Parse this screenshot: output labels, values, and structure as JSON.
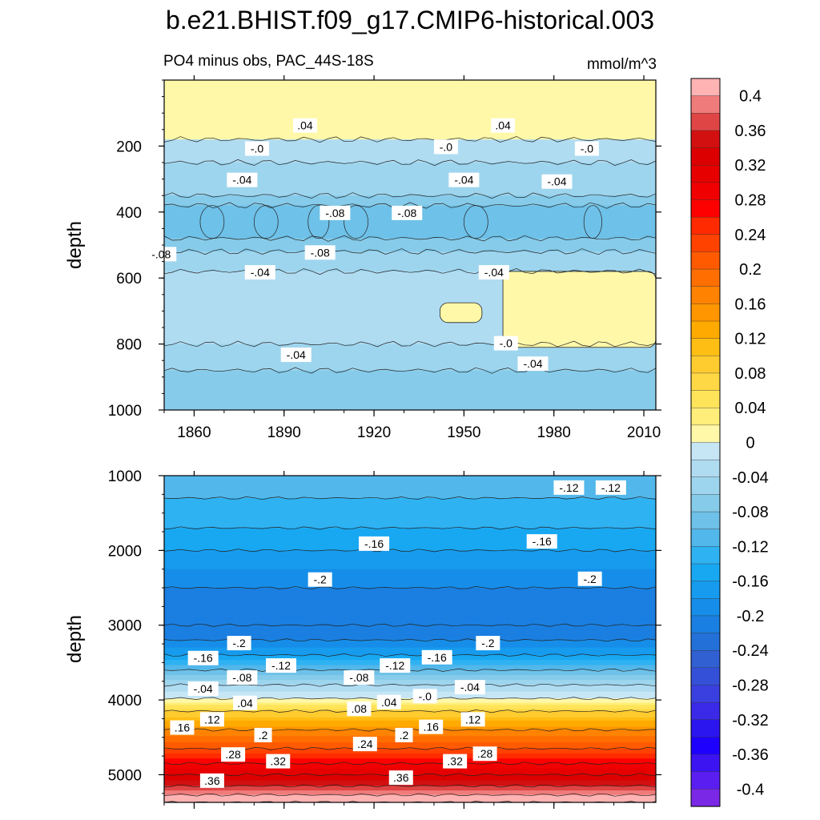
{
  "title": "b.e21.BHIST.f09_g17.CMIP6-historical.003",
  "subtitle_left": "PO4 minus obs, PAC_44S-18S",
  "subtitle_right": "mmol/m^3",
  "ylabel_top": "depth",
  "ylabel_bottom": "depth",
  "chart_data": [
    {
      "type": "heatmap",
      "panel": "upper",
      "x_range": [
        1850,
        2014
      ],
      "y_range": [
        0,
        1000
      ],
      "y_reversed": true,
      "x_ticks": [
        "1860",
        "1890",
        "1920",
        "1950",
        "1980",
        "2010"
      ],
      "y_ticks": [
        "200",
        "400",
        "600",
        "800",
        "1000"
      ],
      "ylabel": "depth",
      "bands": [
        {
          "depth_top": 0,
          "depth_bottom": 180,
          "value": 0.02
        },
        {
          "depth_top": 180,
          "depth_bottom": 250,
          "value": -0.02
        },
        {
          "depth_top": 250,
          "depth_bottom": 350,
          "value": -0.04
        },
        {
          "depth_top": 350,
          "depth_bottom": 380,
          "value": -0.06
        },
        {
          "depth_top": 380,
          "depth_bottom": 480,
          "value": -0.08
        },
        {
          "depth_top": 480,
          "depth_bottom": 520,
          "value": -0.06
        },
        {
          "depth_top": 520,
          "depth_bottom": 580,
          "value": -0.04
        },
        {
          "depth_top": 580,
          "depth_bottom": 800,
          "value": -0.02
        },
        {
          "depth_top": 800,
          "depth_bottom": 880,
          "value": -0.04
        },
        {
          "depth_top": 880,
          "depth_bottom": 1000,
          "value": -0.06
        }
      ],
      "patches": [
        {
          "x_start": 1963,
          "x_end": 2014,
          "depth_top": 580,
          "depth_bottom": 810,
          "value": 0.01
        },
        {
          "x_start": 1942,
          "x_end": 1956,
          "depth_top": 675,
          "depth_bottom": 735,
          "value": 0.01
        }
      ],
      "contour_labels": [
        {
          "text": ".04",
          "x": 1897,
          "depth": 140
        },
        {
          "text": ".04",
          "x": 1963,
          "depth": 140
        },
        {
          "text": "-.0",
          "x": 1881,
          "depth": 210
        },
        {
          "text": "-.0",
          "x": 1944,
          "depth": 205
        },
        {
          "text": "-.0",
          "x": 1991,
          "depth": 210
        },
        {
          "text": "-.04",
          "x": 1876,
          "depth": 305
        },
        {
          "text": "-.04",
          "x": 1950,
          "depth": 305
        },
        {
          "text": "-.04",
          "x": 1981,
          "depth": 310
        },
        {
          "text": "-.08",
          "x": 1907,
          "depth": 405
        },
        {
          "text": "-.08",
          "x": 1931,
          "depth": 405
        },
        {
          "text": "-.08",
          "x": 1902,
          "depth": 525
        },
        {
          "text": "-.08",
          "x": 1849,
          "depth": 530
        },
        {
          "text": "-.04",
          "x": 1882,
          "depth": 585
        },
        {
          "text": "-.04",
          "x": 1960,
          "depth": 585
        },
        {
          "text": "-.0",
          "x": 1964,
          "depth": 800
        },
        {
          "text": "-.04",
          "x": 1894,
          "depth": 835
        },
        {
          "text": "-.04",
          "x": 1973,
          "depth": 862
        }
      ]
    },
    {
      "type": "heatmap",
      "panel": "lower",
      "x_range": [
        1850,
        2014
      ],
      "y_range": [
        1000,
        5370
      ],
      "y_reversed": true,
      "x_ticks": [],
      "y_ticks": [
        "1000",
        "2000",
        "3000",
        "4000",
        "5000"
      ],
      "ylabel": "depth",
      "profile": [
        {
          "depth": 1000,
          "value": -0.1
        },
        {
          "depth": 1300,
          "value": -0.12
        },
        {
          "depth": 1700,
          "value": -0.14
        },
        {
          "depth": 2000,
          "value": -0.16
        },
        {
          "depth": 2500,
          "value": -0.2
        },
        {
          "depth": 3000,
          "value": -0.22
        },
        {
          "depth": 3200,
          "value": -0.2
        },
        {
          "depth": 3400,
          "value": -0.16
        },
        {
          "depth": 3600,
          "value": -0.1
        },
        {
          "depth": 3800,
          "value": -0.04
        },
        {
          "depth": 3980,
          "value": 0.0
        },
        {
          "depth": 4150,
          "value": 0.08
        },
        {
          "depth": 4400,
          "value": 0.16
        },
        {
          "depth": 4650,
          "value": 0.22
        },
        {
          "depth": 4850,
          "value": 0.28
        },
        {
          "depth": 5000,
          "value": 0.32
        },
        {
          "depth": 5150,
          "value": 0.36
        },
        {
          "depth": 5270,
          "value": 0.4
        },
        {
          "depth": 5370,
          "value": 0.44
        }
      ],
      "contour_labels": [
        {
          "text": "-.12",
          "x": 1985,
          "depth": 1170
        },
        {
          "text": "-.12",
          "x": 1999,
          "depth": 1170
        },
        {
          "text": "-.16",
          "x": 1920,
          "depth": 1920
        },
        {
          "text": "-.16",
          "x": 1976,
          "depth": 1890
        },
        {
          "text": "-.2",
          "x": 1902,
          "depth": 2400
        },
        {
          "text": "-.2",
          "x": 1992,
          "depth": 2390
        },
        {
          "text": "-.2",
          "x": 1875,
          "depth": 3250
        },
        {
          "text": "-.2",
          "x": 1958,
          "depth": 3250
        },
        {
          "text": "-.16",
          "x": 1863,
          "depth": 3450
        },
        {
          "text": "-.16",
          "x": 1941,
          "depth": 3440
        },
        {
          "text": "-.12",
          "x": 1889,
          "depth": 3550
        },
        {
          "text": "-.12",
          "x": 1927,
          "depth": 3550
        },
        {
          "text": "-.08",
          "x": 1876,
          "depth": 3710
        },
        {
          "text": "-.08",
          "x": 1915,
          "depth": 3710
        },
        {
          "text": "-.04",
          "x": 1863,
          "depth": 3860
        },
        {
          "text": "-.04",
          "x": 1952,
          "depth": 3840
        },
        {
          "text": "-.0",
          "x": 1937,
          "depth": 3960
        },
        {
          "text": ".04",
          "x": 1877,
          "depth": 4050
        },
        {
          "text": ".04",
          "x": 1925,
          "depth": 4040
        },
        {
          "text": ".08",
          "x": 1915,
          "depth": 4130
        },
        {
          "text": ".12",
          "x": 1866,
          "depth": 4270
        },
        {
          "text": ".12",
          "x": 1953,
          "depth": 4270
        },
        {
          "text": ".16",
          "x": 1856,
          "depth": 4380
        },
        {
          "text": ".16",
          "x": 1939,
          "depth": 4370
        },
        {
          "text": ".2",
          "x": 1883,
          "depth": 4480
        },
        {
          "text": ".2",
          "x": 1930,
          "depth": 4480
        },
        {
          "text": ".24",
          "x": 1917,
          "depth": 4600
        },
        {
          "text": ".28",
          "x": 1873,
          "depth": 4740
        },
        {
          "text": ".28",
          "x": 1957,
          "depth": 4730
        },
        {
          "text": ".32",
          "x": 1888,
          "depth": 4830
        },
        {
          "text": ".32",
          "x": 1947,
          "depth": 4830
        },
        {
          "text": ".36",
          "x": 1866,
          "depth": 5090
        },
        {
          "text": ".36",
          "x": 1929,
          "depth": 5050
        }
      ]
    }
  ],
  "colorbar": {
    "levels_desc": [
      0.44,
      0.4,
      0.38,
      0.36,
      0.34,
      0.32,
      0.3,
      0.28,
      0.26,
      0.24,
      0.22,
      0.2,
      0.18,
      0.16,
      0.14,
      0.12,
      0.1,
      0.08,
      0.06,
      0.04,
      0.02,
      0.0,
      -0.02,
      -0.04,
      -0.06,
      -0.08,
      -0.1,
      -0.12,
      -0.14,
      -0.16,
      -0.18,
      -0.2,
      -0.22,
      -0.24,
      -0.26,
      -0.28,
      -0.3,
      -0.32,
      -0.34,
      -0.36,
      -0.38,
      -0.4,
      -0.42
    ],
    "colors_desc": [
      "#ffb3b3",
      "#f07b7b",
      "#e04545",
      "#d21010",
      "#dc0000",
      "#e60000",
      "#f00000",
      "#ff0000",
      "#ff2a00",
      "#ff4200",
      "#ff5a00",
      "#ff6e00",
      "#ff8200",
      "#ff9600",
      "#ffaa00",
      "#ffbe14",
      "#ffcc30",
      "#ffd845",
      "#ffe45a",
      "#ffee7a",
      "#fff8a8",
      "#c6e6f6",
      "#b0dcf2",
      "#9ed5ee",
      "#86cbea",
      "#6ec1e8",
      "#52b7ea",
      "#2fb2f2",
      "#18a8f2",
      "#169bee",
      "#168ee9",
      "#1a7fe0",
      "#2370d9",
      "#3060d2",
      "#3550d8",
      "#3a40e0",
      "#3a2ae8",
      "#2b16f0",
      "#1e00ff",
      "#3c14f2",
      "#5a1ef0",
      "#7a28e6"
    ],
    "tick_labels": [
      "0.4",
      "0.36",
      "0.32",
      "0.28",
      "0.24",
      "0.2",
      "0.16",
      "0.12",
      "0.08",
      "0.04",
      "0",
      "-0.04",
      "-0.08",
      "-0.12",
      "-0.16",
      "-0.2",
      "-0.24",
      "-0.28",
      "-0.32",
      "-0.36",
      "-0.4"
    ]
  }
}
